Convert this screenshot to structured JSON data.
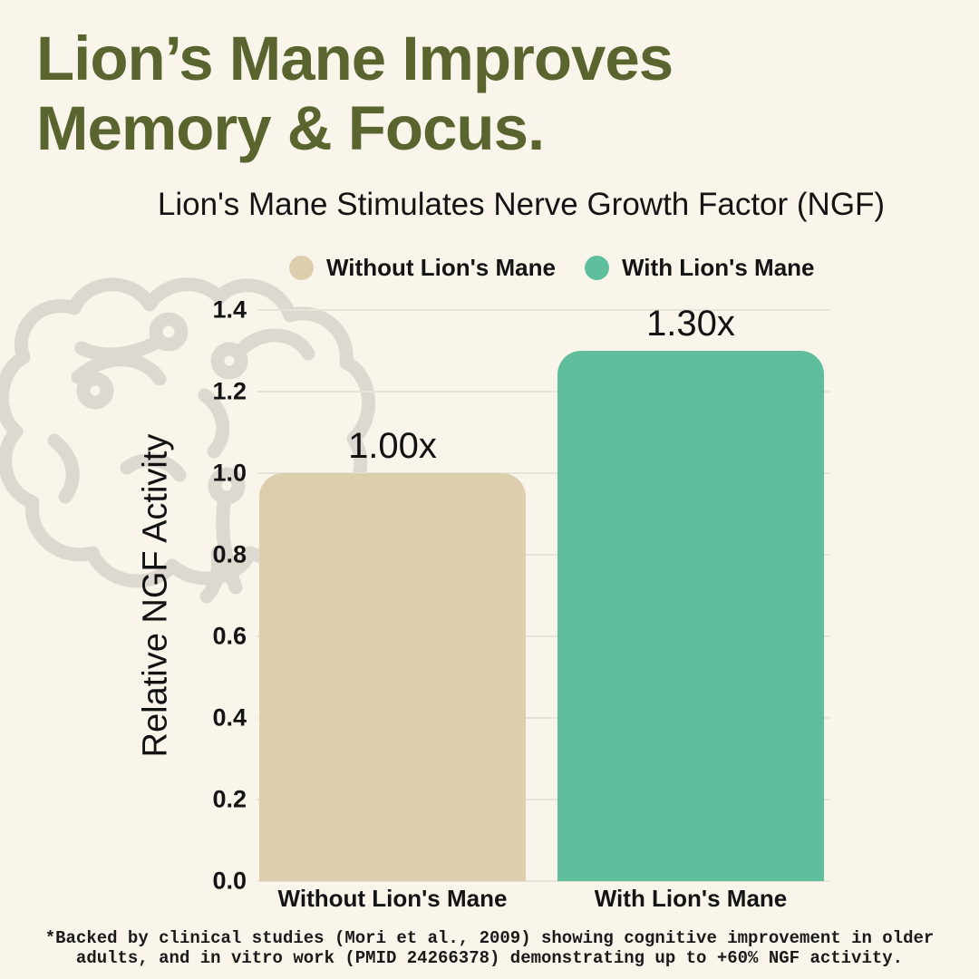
{
  "page": {
    "title_lines": [
      "Lion’s Mane Improves",
      "Memory & Focus."
    ],
    "footnote_lines": [
      "*Backed by clinical studies (Mori et al., 2009) showing cognitive improvement in older",
      "adults, and in vitro work (PMID 24266378) demonstrating up to +60% NGF activity."
    ]
  },
  "colors": {
    "background": "#faf5eb",
    "title": "#5a642f",
    "text": "#141414",
    "bar_without": "#ddcfae",
    "bar_with": "#5fbf9d",
    "gridline": "#e8e3d8",
    "brain_outline": "#ded9d0"
  },
  "icons": {
    "brain": "brain-circuit-icon"
  },
  "chart_data": {
    "type": "bar",
    "title": "Lion's Mane Stimulates Nerve Growth Factor (NGF)",
    "xlabel": "",
    "ylabel": "Relative NGF Activity",
    "ylim": [
      0,
      1.4
    ],
    "yticks": [
      "0.0",
      "0.2",
      "0.4",
      "0.6",
      "0.8",
      "1.0",
      "1.2",
      "1.4"
    ],
    "categories": [
      "Without Lion's Mane",
      "With Lion's Mane"
    ],
    "values": [
      1.0,
      1.3
    ],
    "value_labels": [
      "1.00x",
      "1.30x"
    ],
    "bar_colors": [
      "#ddcfae",
      "#5fbf9d"
    ],
    "grid": true,
    "legend_position": "top",
    "legend": [
      {
        "label": "Without Lion's Mane",
        "color": "#ddcfae"
      },
      {
        "label": "With Lion's Mane",
        "color": "#5fbf9d"
      }
    ]
  }
}
